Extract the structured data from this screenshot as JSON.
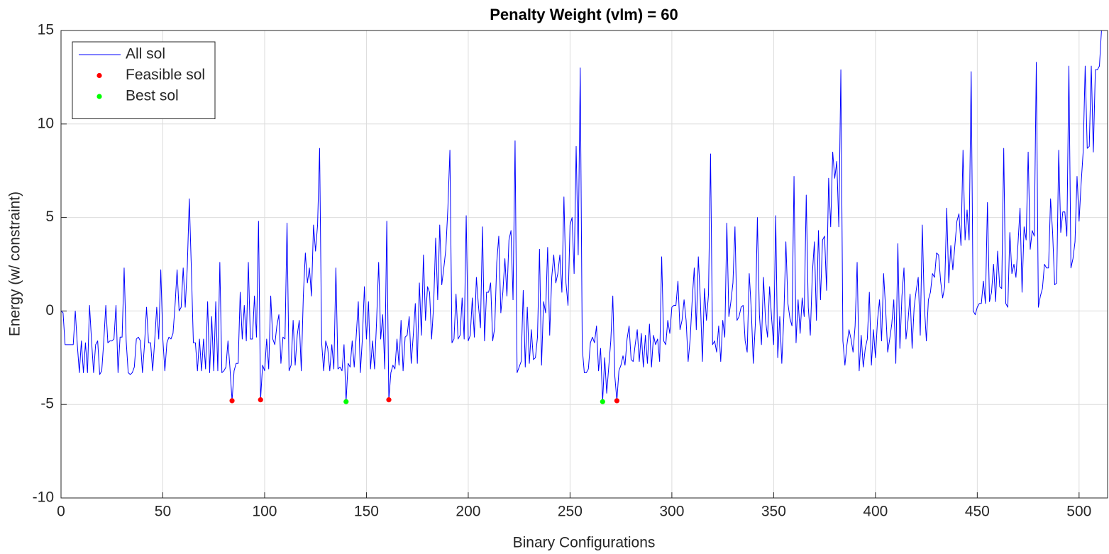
{
  "chart_data": {
    "type": "line",
    "title": "Penalty Weight (vlm) = 60",
    "x_label": "Binary Configurations",
    "y_label": "Energy (w/ constraint)",
    "xlim": [
      0,
      514
    ],
    "ylim": [
      -10,
      15
    ],
    "xticks": [
      0,
      50,
      100,
      150,
      200,
      250,
      300,
      350,
      400,
      450,
      500
    ],
    "yticks": [
      -10,
      -5,
      0,
      5,
      10,
      15
    ],
    "grid": true,
    "legend": "upper left",
    "series": [
      {
        "name": "All sol",
        "type": "line",
        "color": "#0000ff",
        "x": [
          0,
          1,
          2,
          3,
          4,
          5,
          6,
          7,
          8,
          9,
          10,
          11,
          12,
          13,
          14,
          15,
          16,
          17,
          18,
          19,
          20,
          21,
          22,
          23,
          24,
          25,
          26,
          27,
          28,
          29,
          30,
          31,
          32,
          33,
          34,
          35,
          36,
          37,
          38,
          39,
          40,
          41,
          42,
          43,
          44,
          45,
          46,
          47,
          48,
          49,
          50,
          51,
          52,
          53,
          54,
          55,
          56,
          57,
          58,
          59,
          60,
          61,
          62,
          63,
          64,
          65,
          66,
          67,
          68,
          69,
          70,
          71,
          72,
          73,
          74,
          75,
          76,
          77,
          78,
          79,
          80,
          81,
          82,
          83,
          84,
          85,
          86,
          87,
          88,
          89,
          90,
          91,
          92,
          93,
          94,
          95,
          96,
          97,
          98,
          99,
          100,
          101,
          102,
          103,
          104,
          105,
          106,
          107,
          108,
          109,
          110,
          111,
          112,
          113,
          114,
          115,
          116,
          117,
          118,
          119,
          120,
          121,
          122,
          123,
          124,
          125,
          126,
          127,
          128,
          129,
          130,
          131,
          132,
          133,
          134,
          135,
          136,
          137,
          138,
          139,
          140,
          141,
          142,
          143,
          144,
          145,
          146,
          147,
          148,
          149,
          150,
          151,
          152,
          153,
          154,
          155,
          156,
          157,
          158,
          159,
          160,
          161,
          162,
          163,
          164,
          165,
          166,
          167,
          168,
          169,
          170,
          171,
          172,
          173,
          174,
          175,
          176,
          177,
          178,
          179,
          180,
          181,
          182,
          183,
          184,
          185,
          186,
          187,
          188,
          189,
          190,
          191,
          192,
          193,
          194,
          195,
          196,
          197,
          198,
          199,
          200,
          201,
          202,
          203,
          204,
          205,
          206,
          207,
          208,
          209,
          210,
          211,
          212,
          213,
          214,
          215,
          216,
          217,
          218,
          219,
          220,
          221,
          222,
          223,
          224,
          225,
          226,
          227,
          228,
          229,
          230,
          231,
          232,
          233,
          234,
          235,
          236,
          237,
          238,
          239,
          240,
          241,
          242,
          243,
          244,
          245,
          246,
          247,
          248,
          249,
          250,
          251,
          252,
          253,
          254,
          255,
          256,
          257,
          258,
          259,
          260,
          261,
          262,
          263,
          264,
          265,
          266,
          267,
          268,
          269,
          270,
          271,
          272,
          273,
          274,
          275,
          276,
          277,
          278,
          279,
          280,
          281,
          282,
          283,
          284,
          285,
          286,
          287,
          288,
          289,
          290,
          291,
          292,
          293,
          294,
          295,
          296,
          297,
          298,
          299,
          300,
          301,
          302,
          303,
          304,
          305,
          306,
          307,
          308,
          309,
          310,
          311,
          312,
          313,
          314,
          315,
          316,
          317,
          318,
          319,
          320,
          321,
          322,
          323,
          324,
          325,
          326,
          327,
          328,
          329,
          330,
          331,
          332,
          333,
          334,
          335,
          336,
          337,
          338,
          339,
          340,
          341,
          342,
          343,
          344,
          345,
          346,
          347,
          348,
          349,
          350,
          351,
          352,
          353,
          354,
          355,
          356,
          357,
          358,
          359,
          360,
          361,
          362,
          363,
          364,
          365,
          366,
          367,
          368,
          369,
          370,
          371,
          372,
          373,
          374,
          375,
          376,
          377,
          378,
          379,
          380,
          381,
          382,
          383,
          384,
          385,
          386,
          387,
          388,
          389,
          390,
          391,
          392,
          393,
          394,
          395,
          396,
          397,
          398,
          399,
          400,
          401,
          402,
          403,
          404,
          405,
          406,
          407,
          408,
          409,
          410,
          411,
          412,
          413,
          414,
          415,
          416,
          417,
          418,
          419,
          420,
          421,
          422,
          423,
          424,
          425,
          426,
          427,
          428,
          429,
          430,
          431,
          432,
          433,
          434,
          435,
          436,
          437,
          438,
          439,
          440,
          441,
          442,
          443,
          444,
          445,
          446,
          447,
          448,
          449,
          450,
          451,
          452,
          453,
          454,
          455,
          456,
          457,
          458,
          459,
          460,
          461,
          462,
          463,
          464,
          465,
          466,
          467,
          468,
          469,
          470,
          471,
          472,
          473,
          474,
          475,
          476,
          477,
          478,
          479,
          480,
          481,
          482,
          483,
          484,
          485,
          486,
          487,
          488,
          489,
          490,
          491,
          492,
          493,
          494,
          495,
          496,
          497,
          498,
          499,
          500,
          501,
          502,
          503,
          504,
          505,
          506,
          507,
          508,
          509,
          510,
          511
        ],
        "values": [
          0,
          -0.1,
          -1.8,
          -1.8,
          -1.8,
          -1.8,
          -1.8,
          0,
          -1.8,
          -3.3,
          -1.6,
          -3.3,
          -1.7,
          -3.3,
          0.3,
          -1.6,
          -3.3,
          -1.8,
          -1.6,
          -3.4,
          -3.2,
          -1.6,
          0.3,
          -1.7,
          -1.6,
          -1.6,
          -1.5,
          0.3,
          -3.3,
          -1.4,
          -1.4,
          2.3,
          -1.6,
          -3.3,
          -3.4,
          -3.3,
          -3.0,
          -1.5,
          -1.4,
          -1.6,
          -3.3,
          -1.8,
          0.2,
          -1.7,
          -1.7,
          -3.2,
          -1.6,
          0.2,
          -1.5,
          2.2,
          -1.5,
          -3.2,
          -1.7,
          -1.4,
          -1.5,
          -1.2,
          0.3,
          2.2,
          0.0,
          0.2,
          2.3,
          0.2,
          2.3,
          6.0,
          2.3,
          -1.7,
          -1.7,
          -3.2,
          -1.5,
          -3.2,
          -1.5,
          -3.1,
          0.5,
          -3.3,
          -0.3,
          -3.2,
          0.5,
          -3.2,
          2.6,
          -3.3,
          -3.2,
          -3.0,
          -1.6,
          -3.1,
          -4.8,
          -3.2,
          -2.8,
          -2.8,
          1.0,
          -1.5,
          0.3,
          -1.6,
          2.6,
          -1.5,
          -1.5,
          0.8,
          -1.4,
          4.8,
          -4.75,
          -2.9,
          -3.2,
          -1.5,
          -3.1,
          0.8,
          -1.5,
          -1.8,
          -0.8,
          -0.2,
          -2.8,
          -1.4,
          -1.5,
          4.7,
          -3.2,
          -2.9,
          -0.5,
          -2.9,
          -1.3,
          -0.5,
          -3.2,
          0.8,
          3.1,
          1.5,
          2.3,
          0.8,
          4.6,
          3.2,
          4.6,
          8.7,
          -1.7,
          -3.2,
          -1.6,
          -2.0,
          -3.2,
          -1.8,
          -3.1,
          2.3,
          -3.1,
          -3.0,
          -3.2,
          -1.8,
          -4.85,
          -2.8,
          -3.0,
          -1.6,
          -3.0,
          -1.3,
          0.5,
          -3.3,
          -1.5,
          1.3,
          -1.5,
          0.5,
          -3.1,
          -1.6,
          -3.1,
          -0.5,
          2.6,
          -1.5,
          -0.2,
          -3.1,
          4.8,
          -4.75,
          -3.3,
          -2.9,
          -3.1,
          -1.5,
          -2.9,
          -0.5,
          -3.2,
          -1.4,
          -1.3,
          -0.3,
          -2.8,
          -1.3,
          0.4,
          -2.8,
          1.5,
          -1.3,
          3.0,
          -0.5,
          1.3,
          1.0,
          -1.5,
          0.3,
          3.9,
          0.6,
          4.6,
          1.4,
          2.3,
          3.3,
          5.5,
          8.6,
          -1.7,
          -1.5,
          0.9,
          -1.5,
          -1.3,
          0.7,
          -1.5,
          5.1,
          -1.6,
          -1.3,
          0.7,
          -1.4,
          1.8,
          0.3,
          -0.9,
          4.5,
          -1.6,
          1.0,
          1.0,
          1.5,
          -1.6,
          -0.9,
          2.6,
          4.0,
          -0.1,
          1.0,
          2.8,
          0.8,
          3.8,
          4.3,
          0.6,
          9.1,
          -3.3,
          -3.0,
          -2.7,
          1.1,
          -3.0,
          0.2,
          -2.8,
          -1.0,
          -2.6,
          -2.5,
          -1.4,
          3.3,
          -2.9,
          0.5,
          -0.1,
          3.4,
          -1.3,
          1.8,
          3.0,
          1.5,
          2.0,
          3.0,
          1.0,
          6.1,
          1.5,
          0.3,
          4.6,
          5.0,
          2.0,
          8.8,
          3.0,
          13.0,
          -2.0,
          -3.3,
          -3.3,
          -3.1,
          -1.7,
          -1.4,
          -1.7,
          -0.8,
          -3.2,
          -2.0,
          -4.85,
          -2.5,
          -4.4,
          -3.0,
          -1.6,
          0.8,
          -3.5,
          -4.8,
          -3.2,
          -2.9,
          -2.4,
          -2.9,
          -1.5,
          -0.8,
          -2.6,
          -2.7,
          -1.8,
          -1.0,
          -2.7,
          -1.2,
          -3.0,
          -1.3,
          -2.8,
          -0.7,
          -3.0,
          -1.3,
          -1.8,
          -1.5,
          -2.7,
          2.9,
          -1.6,
          -1.8,
          -0.5,
          -1.2,
          0.2,
          0.3,
          0.3,
          1.6,
          -1.0,
          -0.5,
          0.6,
          -0.5,
          -2.7,
          -1.5,
          0.6,
          2.3,
          -1.0,
          2.9,
          0.6,
          -2.7,
          1.2,
          -0.5,
          0.9,
          8.4,
          -1.8,
          -1.6,
          -2.2,
          -0.8,
          -2.7,
          -0.5,
          -1.4,
          4.7,
          -0.3,
          0.5,
          1.5,
          4.5,
          -0.5,
          -0.3,
          0.2,
          0.3,
          -1.6,
          -2.2,
          2.0,
          0.1,
          -2.8,
          -0.7,
          5.0,
          -0.2,
          -1.8,
          1.8,
          -0.5,
          -1.4,
          1.3,
          -0.4,
          -1.8,
          5.1,
          -2.5,
          -0.3,
          -2.8,
          -0.3,
          3.7,
          0.4,
          -0.4,
          -0.8,
          7.2,
          -1.7,
          0.6,
          -1.2,
          0.7,
          -0.3,
          6.2,
          0.2,
          -1.3,
          2.0,
          3.7,
          -0.5,
          4.3,
          0.6,
          3.8,
          4.0,
          1.1,
          7.1,
          4.5,
          8.5,
          7.1,
          8.0,
          4.5,
          12.9,
          -1.6,
          -2.9,
          -1.8,
          -1.0,
          -1.5,
          -2.2,
          -0.8,
          2.6,
          -3.2,
          -1.3,
          -3.0,
          -2.0,
          -1.5,
          1.0,
          -2.9,
          -1.0,
          -2.5,
          -0.5,
          0.6,
          -1.6,
          2.0,
          0.1,
          -2.2,
          -1.5,
          -0.7,
          0.6,
          -2.8,
          3.6,
          -2.0,
          0.8,
          2.3,
          -1.5,
          -0.5,
          0.9,
          -2.0,
          0.2,
          1.1,
          1.8,
          -1.3,
          4.6,
          0.3,
          -1.6,
          0.6,
          1.0,
          2.0,
          1.8,
          3.1,
          3.0,
          1.6,
          0.7,
          1.3,
          5.5,
          1.5,
          3.5,
          2.2,
          3.5,
          4.8,
          5.2,
          3.5,
          8.6,
          3.8,
          5.4,
          3.8,
          12.8,
          0.0,
          -0.2,
          0.2,
          0.4,
          0.4,
          1.6,
          0.4,
          5.8,
          0.5,
          1.0,
          2.5,
          0.5,
          3.2,
          1.3,
          1.2,
          8.7,
          0.4,
          0.2,
          4.2,
          2.0,
          2.5,
          1.8,
          3.6,
          5.5,
          1.0,
          4.5,
          3.8,
          8.5,
          3.3,
          4.3,
          4.0,
          13.3,
          0.2,
          0.8,
          1.2,
          2.5,
          2.3,
          2.3,
          6.0,
          4.2,
          1.4,
          1.5,
          8.6,
          4.2,
          5.3,
          5.3,
          4.0,
          13.1,
          2.3,
          2.8,
          3.7,
          7.2,
          4.8,
          6.8,
          8.5,
          13.1,
          8.7,
          8.8,
          13.1,
          8.5,
          12.9,
          12.9,
          13.1,
          15.0
        ]
      },
      {
        "name": "Feasible sol",
        "type": "scatter",
        "color": "#ff0000",
        "x": [
          84,
          98,
          161,
          273
        ],
        "values": [
          -4.8,
          -4.75,
          -4.75,
          -4.8
        ]
      },
      {
        "name": "Best sol",
        "type": "scatter",
        "color": "#00ff00",
        "x": [
          140,
          266
        ],
        "values": [
          -4.85,
          -4.85
        ]
      }
    ]
  }
}
